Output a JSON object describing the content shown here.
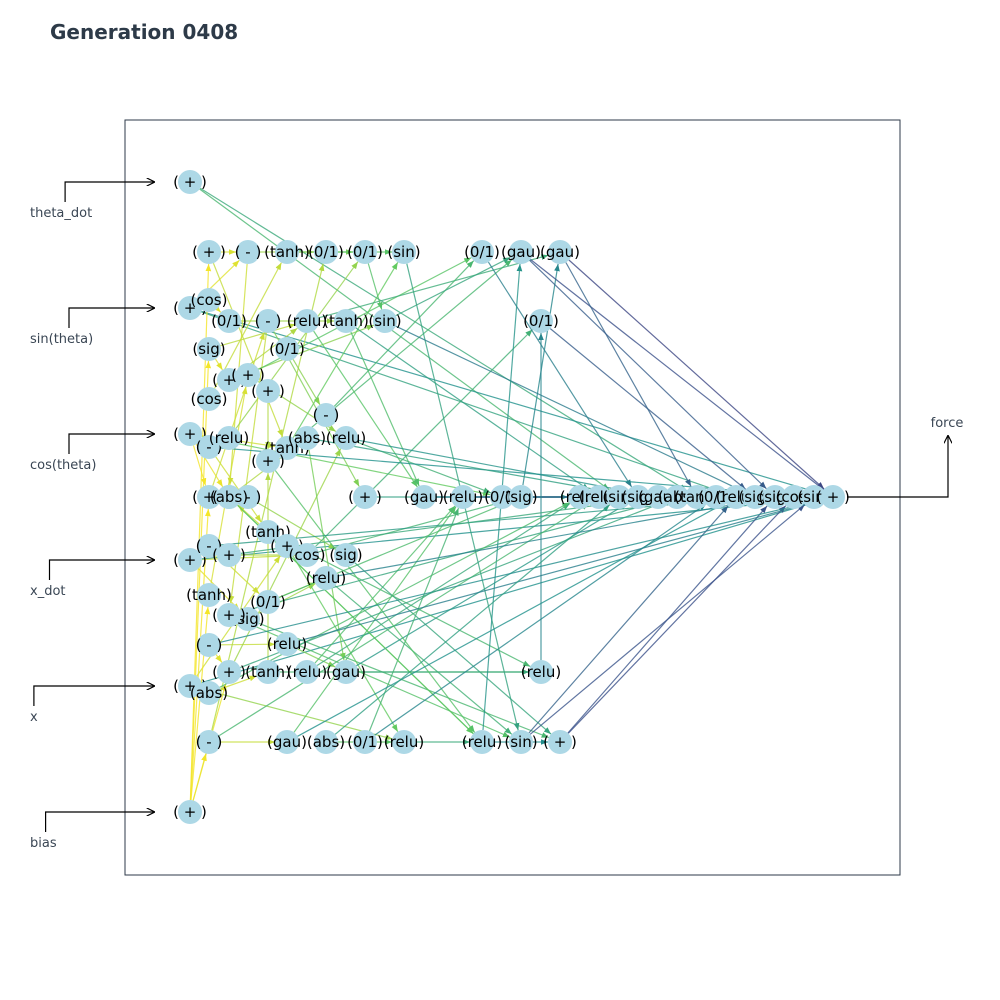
{
  "title": "Generation 0408",
  "inputs": [
    "theta_dot",
    "sin(theta)",
    "cos(theta)",
    "x_dot",
    "x",
    "bias"
  ],
  "output": "force",
  "colors": {
    "node_fill": "#add8e6",
    "frame": "#2d3a48",
    "arrow": "#000000",
    "edge_palette": [
      "#440154",
      "#3b528b",
      "#21918c",
      "#5ec962",
      "#fde725"
    ]
  },
  "nodes": [
    {
      "id": "in0",
      "label": "( + )"
    },
    {
      "id": "in1",
      "label": "( + )"
    },
    {
      "id": "in2",
      "label": "( + )"
    },
    {
      "id": "in3",
      "label": "( + )"
    },
    {
      "id": "in4",
      "label": "( + )"
    },
    {
      "id": "in5",
      "label": "( + )"
    },
    {
      "id": "a1",
      "label": "( + )"
    },
    {
      "id": "a2",
      "label": "(cos)"
    },
    {
      "id": "a3",
      "label": "(sig)"
    },
    {
      "id": "a4",
      "label": "(cos)"
    },
    {
      "id": "a5",
      "label": "( - )"
    },
    {
      "id": "a6",
      "label": "( + )"
    },
    {
      "id": "a7",
      "label": "( - )"
    },
    {
      "id": "a8",
      "label": "(tanh)"
    },
    {
      "id": "a9",
      "label": "( - )"
    },
    {
      "id": "a10",
      "label": "(abs)"
    },
    {
      "id": "a11",
      "label": "( - )"
    },
    {
      "id": "b1",
      "label": "( - )"
    },
    {
      "id": "b2",
      "label": "(0/1)"
    },
    {
      "id": "b3",
      "label": "( + )"
    },
    {
      "id": "b4",
      "label": "(relu)"
    },
    {
      "id": "b5",
      "label": "( + )"
    },
    {
      "id": "b6",
      "label": "( + )"
    },
    {
      "id": "b7",
      "label": "(sig)"
    },
    {
      "id": "b8",
      "label": "( + )"
    },
    {
      "id": "c1",
      "label": "(tanh)"
    },
    {
      "id": "c2",
      "label": "( - )"
    },
    {
      "id": "c3",
      "label": "(0/1)"
    },
    {
      "id": "c4",
      "label": "( + )"
    },
    {
      "id": "c5",
      "label": "( + )"
    },
    {
      "id": "c6",
      "label": "(tanh)"
    },
    {
      "id": "c7",
      "label": "( - )"
    },
    {
      "id": "c8",
      "label": "(tanh)"
    },
    {
      "id": "c9",
      "label": "( + )"
    },
    {
      "id": "c10",
      "label": "(0/1)"
    },
    {
      "id": "c11",
      "label": "(relu)"
    },
    {
      "id": "c12",
      "label": "(tanh)"
    },
    {
      "id": "c13",
      "label": "(gau)"
    },
    {
      "id": "d1",
      "label": "(0/1)"
    },
    {
      "id": "d2",
      "label": "(relu)"
    },
    {
      "id": "d3",
      "label": "(abs)"
    },
    {
      "id": "d4",
      "label": "(cos)"
    },
    {
      "id": "d5",
      "label": "(relu)"
    },
    {
      "id": "d6",
      "label": "(relu)"
    },
    {
      "id": "d7",
      "label": "(abs)"
    },
    {
      "id": "e1",
      "label": "(0/1)"
    },
    {
      "id": "e2",
      "label": "(tanh)"
    },
    {
      "id": "e3",
      "label": "( - )"
    },
    {
      "id": "e4",
      "label": "(relu)"
    },
    {
      "id": "e5",
      "label": "(sig)"
    },
    {
      "id": "e6",
      "label": "(gau)"
    },
    {
      "id": "f1",
      "label": "(0/1)"
    },
    {
      "id": "f2",
      "label": "( + )"
    },
    {
      "id": "f3",
      "label": "( + )"
    },
    {
      "id": "f4",
      "label": "(abs)"
    },
    {
      "id": "g1",
      "label": "(sin)"
    },
    {
      "id": "g2",
      "label": "(sin)"
    },
    {
      "id": "g3",
      "label": "(relu)"
    },
    {
      "id": "h1",
      "label": "( + )"
    },
    {
      "id": "h2",
      "label": "(gau)"
    },
    {
      "id": "h3",
      "label": "(relu)"
    },
    {
      "id": "h4",
      "label": "(0/1)"
    },
    {
      "id": "h5",
      "label": "(0/1)"
    },
    {
      "id": "h6",
      "label": "(sig)"
    },
    {
      "id": "h7",
      "label": "(relu)"
    },
    {
      "id": "i1",
      "label": "(gau)"
    },
    {
      "id": "i2",
      "label": "(sin)"
    },
    {
      "id": "i3",
      "label": "(0/1)"
    },
    {
      "id": "i4",
      "label": "(gau)"
    },
    {
      "id": "i5",
      "label": "( + )"
    },
    {
      "id": "i6",
      "label": "(relu)"
    },
    {
      "id": "j1",
      "label": "(relu)"
    },
    {
      "id": "j2",
      "label": "(relu)"
    },
    {
      "id": "j3",
      "label": "(sin)"
    },
    {
      "id": "j4",
      "label": "(sig)"
    },
    {
      "id": "j5",
      "label": "(gau)"
    },
    {
      "id": "j6",
      "label": "(abs)"
    },
    {
      "id": "j7",
      "label": "(tanh)"
    },
    {
      "id": "j8",
      "label": "(0/1)"
    },
    {
      "id": "j9",
      "label": "(relu)"
    },
    {
      "id": "j10",
      "label": "(sig)"
    },
    {
      "id": "j11",
      "label": "(sig)"
    },
    {
      "id": "j12",
      "label": "(cos)"
    },
    {
      "id": "j13",
      "label": "(sin)"
    },
    {
      "id": "out",
      "label": "( + )"
    }
  ],
  "edges": [
    [
      "in0",
      "j3"
    ],
    [
      "in0",
      "j7"
    ],
    [
      "in1",
      "a2"
    ],
    [
      "in1",
      "b1"
    ],
    [
      "in1",
      "out"
    ],
    [
      "in1",
      "j9"
    ],
    [
      "in2",
      "a6"
    ],
    [
      "in2",
      "b5"
    ],
    [
      "in2",
      "c6"
    ],
    [
      "in2",
      "h5"
    ],
    [
      "in3",
      "a7"
    ],
    [
      "in3",
      "b7"
    ],
    [
      "in3",
      "d4"
    ],
    [
      "in3",
      "out"
    ],
    [
      "in4",
      "a10"
    ],
    [
      "in4",
      "c9"
    ],
    [
      "in4",
      "g3"
    ],
    [
      "in4",
      "out"
    ],
    [
      "in5",
      "a11"
    ],
    [
      "in5",
      "b8"
    ],
    [
      "in5",
      "a8"
    ],
    [
      "in5",
      "a3"
    ],
    [
      "in5",
      "a1"
    ],
    [
      "in5",
      "a6"
    ],
    [
      "a1",
      "b1"
    ],
    [
      "a2",
      "b2"
    ],
    [
      "a3",
      "b3"
    ],
    [
      "a4",
      "c1"
    ],
    [
      "a5",
      "b4"
    ],
    [
      "a6",
      "c2"
    ],
    [
      "a7",
      "b6"
    ],
    [
      "a8",
      "c4"
    ],
    [
      "a9",
      "c11"
    ],
    [
      "a10",
      "c12"
    ],
    [
      "a11",
      "d1"
    ],
    [
      "a1",
      "c6"
    ],
    [
      "a3",
      "d2"
    ],
    [
      "a5",
      "c8"
    ],
    [
      "a7",
      "c10"
    ],
    [
      "a9",
      "b8"
    ],
    [
      "a11",
      "c13"
    ],
    [
      "b1",
      "d1"
    ],
    [
      "b2",
      "e2"
    ],
    [
      "b3",
      "d2"
    ],
    [
      "b4",
      "e1"
    ],
    [
      "b5",
      "d3"
    ],
    [
      "b6",
      "d4"
    ],
    [
      "b7",
      "d5"
    ],
    [
      "b8",
      "e4"
    ],
    [
      "b1",
      "f4"
    ],
    [
      "b3",
      "g2"
    ],
    [
      "b5",
      "h7"
    ],
    [
      "b7",
      "i5"
    ],
    [
      "c1",
      "e1"
    ],
    [
      "c2",
      "f3"
    ],
    [
      "c3",
      "e3"
    ],
    [
      "c4",
      "e4"
    ],
    [
      "c5",
      "f2"
    ],
    [
      "c6",
      "g1"
    ],
    [
      "c7",
      "e5"
    ],
    [
      "c8",
      "f4"
    ],
    [
      "c9",
      "g3"
    ],
    [
      "c10",
      "d5"
    ],
    [
      "c11",
      "e6"
    ],
    [
      "c12",
      "f2"
    ],
    [
      "c13",
      "h3"
    ],
    [
      "c2",
      "h1"
    ],
    [
      "c4",
      "h4"
    ],
    [
      "c6",
      "i1"
    ],
    [
      "c8",
      "i6"
    ],
    [
      "c10",
      "h6"
    ],
    [
      "c12",
      "i6"
    ],
    [
      "d1",
      "g1"
    ],
    [
      "d2",
      "h2"
    ],
    [
      "d3",
      "e6"
    ],
    [
      "d4",
      "h6"
    ],
    [
      "d5",
      "i2"
    ],
    [
      "d6",
      "h3"
    ],
    [
      "d7",
      "g3"
    ],
    [
      "d2",
      "i4"
    ],
    [
      "d4",
      "i3"
    ],
    [
      "d6",
      "j1"
    ],
    [
      "e1",
      "g2"
    ],
    [
      "e2",
      "h2"
    ],
    [
      "e3",
      "h4"
    ],
    [
      "e4",
      "h5"
    ],
    [
      "e5",
      "i5"
    ],
    [
      "e6",
      "i6"
    ],
    [
      "e2",
      "j2"
    ],
    [
      "e4",
      "j5"
    ],
    [
      "e6",
      "j4"
    ],
    [
      "f1",
      "h3"
    ],
    [
      "f2",
      "h7"
    ],
    [
      "f3",
      "i2"
    ],
    [
      "f4",
      "h7"
    ],
    [
      "f1",
      "j8"
    ],
    [
      "f3",
      "j6"
    ],
    [
      "g1",
      "i2"
    ],
    [
      "g2",
      "i1"
    ],
    [
      "g3",
      "h7"
    ],
    [
      "g2",
      "j10"
    ],
    [
      "h1",
      "j1"
    ],
    [
      "h2",
      "j2"
    ],
    [
      "h3",
      "j3"
    ],
    [
      "h4",
      "j4"
    ],
    [
      "h5",
      "j5"
    ],
    [
      "h6",
      "j6"
    ],
    [
      "h7",
      "i5"
    ],
    [
      "h7",
      "i1"
    ],
    [
      "h6",
      "i4"
    ],
    [
      "h2",
      "j8"
    ],
    [
      "h3",
      "j12"
    ],
    [
      "i1",
      "out"
    ],
    [
      "i2",
      "j9"
    ],
    [
      "i3",
      "j10"
    ],
    [
      "i4",
      "out"
    ],
    [
      "i5",
      "j11"
    ],
    [
      "i6",
      "i3"
    ],
    [
      "i2",
      "j13"
    ],
    [
      "i5",
      "j12"
    ],
    [
      "i4",
      "j7"
    ],
    [
      "i1",
      "j11"
    ],
    [
      "a10",
      "j1"
    ],
    [
      "a11",
      "j2"
    ],
    [
      "a9",
      "out"
    ],
    [
      "a7",
      "j10"
    ],
    [
      "a5",
      "j13"
    ],
    [
      "b8",
      "j6"
    ],
    [
      "c13",
      "j9"
    ],
    [
      "c11",
      "out"
    ],
    [
      "d7",
      "j3"
    ],
    [
      "d3",
      "j4"
    ],
    [
      "d5",
      "j11"
    ],
    [
      "b6",
      "j5"
    ],
    [
      "j1",
      "j2"
    ],
    [
      "j2",
      "j3"
    ],
    [
      "j3",
      "j4"
    ],
    [
      "j4",
      "j5"
    ],
    [
      "j5",
      "j6"
    ],
    [
      "j6",
      "j7"
    ],
    [
      "j7",
      "j8"
    ],
    [
      "j8",
      "j9"
    ],
    [
      "j9",
      "j10"
    ],
    [
      "j10",
      "j11"
    ],
    [
      "j11",
      "j12"
    ],
    [
      "j12",
      "j13"
    ],
    [
      "j13",
      "out"
    ]
  ]
}
